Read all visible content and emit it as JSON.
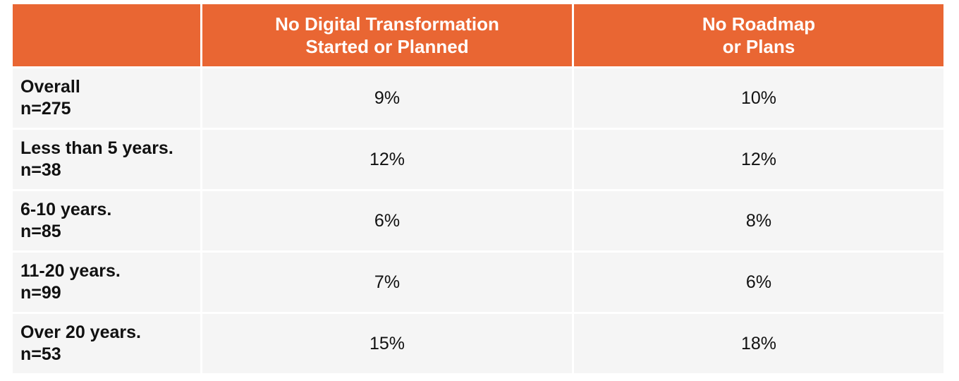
{
  "table": {
    "header": {
      "corner": "",
      "col1_line1": "No Digital Transformation",
      "col1_line2": "Started or Planned",
      "col2_line1": "No Roadmap",
      "col2_line2": "or Plans"
    },
    "rows": [
      {
        "label": "Overall",
        "n": "n=275",
        "col1": "9%",
        "col2": "10%"
      },
      {
        "label": "Less than 5 years.",
        "n": "n=38",
        "col1": "12%",
        "col2": "12%"
      },
      {
        "label": "6-10 years.",
        "n": "n=85",
        "col1": "6%",
        "col2": "8%"
      },
      {
        "label": "11-20 years.",
        "n": "n=99",
        "col1": "7%",
        "col2": "6%"
      },
      {
        "label": "Over 20 years.",
        "n": "n=53",
        "col1": "15%",
        "col2": "18%"
      }
    ],
    "colors": {
      "header_bg": "#e96633",
      "header_text": "#ffffff",
      "cell_bg": "#f5f5f5"
    }
  }
}
